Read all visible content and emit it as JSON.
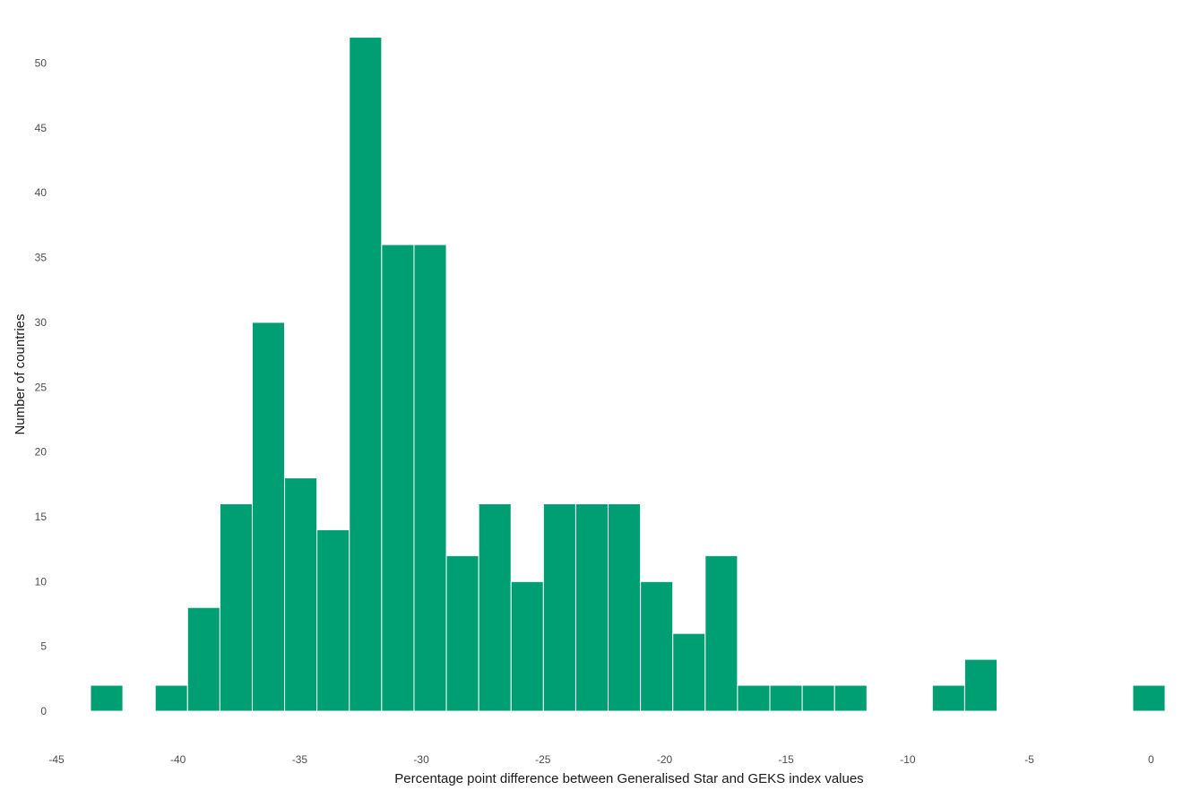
{
  "chart_data": {
    "type": "bar",
    "subtype": "histogram",
    "xlabel": "Percentage point difference between Generalised Star and GEKS index values",
    "ylabel": "Number of countries",
    "xlim": [
      -45,
      1
    ],
    "ylim": [
      0,
      53
    ],
    "x_ticks": [
      -45,
      -40,
      -35,
      -30,
      -25,
      -20,
      -15,
      -10,
      -5,
      0
    ],
    "y_ticks": [
      0,
      5,
      10,
      15,
      20,
      25,
      30,
      35,
      40,
      45,
      50
    ],
    "bin_width": 1.33,
    "bar_color": "#009E73",
    "grid": false,
    "legend": "none",
    "bins": [
      {
        "start": -43.6,
        "end": -42.27,
        "count": 2
      },
      {
        "start": -40.94,
        "end": -39.61,
        "count": 2
      },
      {
        "start": -39.61,
        "end": -38.28,
        "count": 8
      },
      {
        "start": -38.28,
        "end": -36.95,
        "count": 16
      },
      {
        "start": -36.95,
        "end": -35.62,
        "count": 30
      },
      {
        "start": -35.62,
        "end": -34.29,
        "count": 18
      },
      {
        "start": -34.29,
        "end": -32.96,
        "count": 14
      },
      {
        "start": -32.96,
        "end": -31.63,
        "count": 52
      },
      {
        "start": -31.63,
        "end": -30.3,
        "count": 36
      },
      {
        "start": -30.3,
        "end": -28.97,
        "count": 36
      },
      {
        "start": -28.97,
        "end": -27.64,
        "count": 12
      },
      {
        "start": -27.64,
        "end": -26.31,
        "count": 16
      },
      {
        "start": -26.31,
        "end": -24.98,
        "count": 10
      },
      {
        "start": -24.98,
        "end": -23.65,
        "count": 16
      },
      {
        "start": -23.65,
        "end": -22.32,
        "count": 16
      },
      {
        "start": -22.32,
        "end": -20.99,
        "count": 16
      },
      {
        "start": -20.99,
        "end": -19.66,
        "count": 10
      },
      {
        "start": -19.66,
        "end": -18.33,
        "count": 6
      },
      {
        "start": -18.33,
        "end": -17.0,
        "count": 12
      },
      {
        "start": -17.0,
        "end": -15.67,
        "count": 2
      },
      {
        "start": -15.67,
        "end": -14.34,
        "count": 2
      },
      {
        "start": -14.34,
        "end": -13.01,
        "count": 2
      },
      {
        "start": -13.01,
        "end": -11.68,
        "count": 2
      },
      {
        "start": -8.99,
        "end": -7.66,
        "count": 2
      },
      {
        "start": -7.66,
        "end": -6.33,
        "count": 4
      },
      {
        "start": -0.75,
        "end": 0.58,
        "count": 2
      }
    ]
  }
}
